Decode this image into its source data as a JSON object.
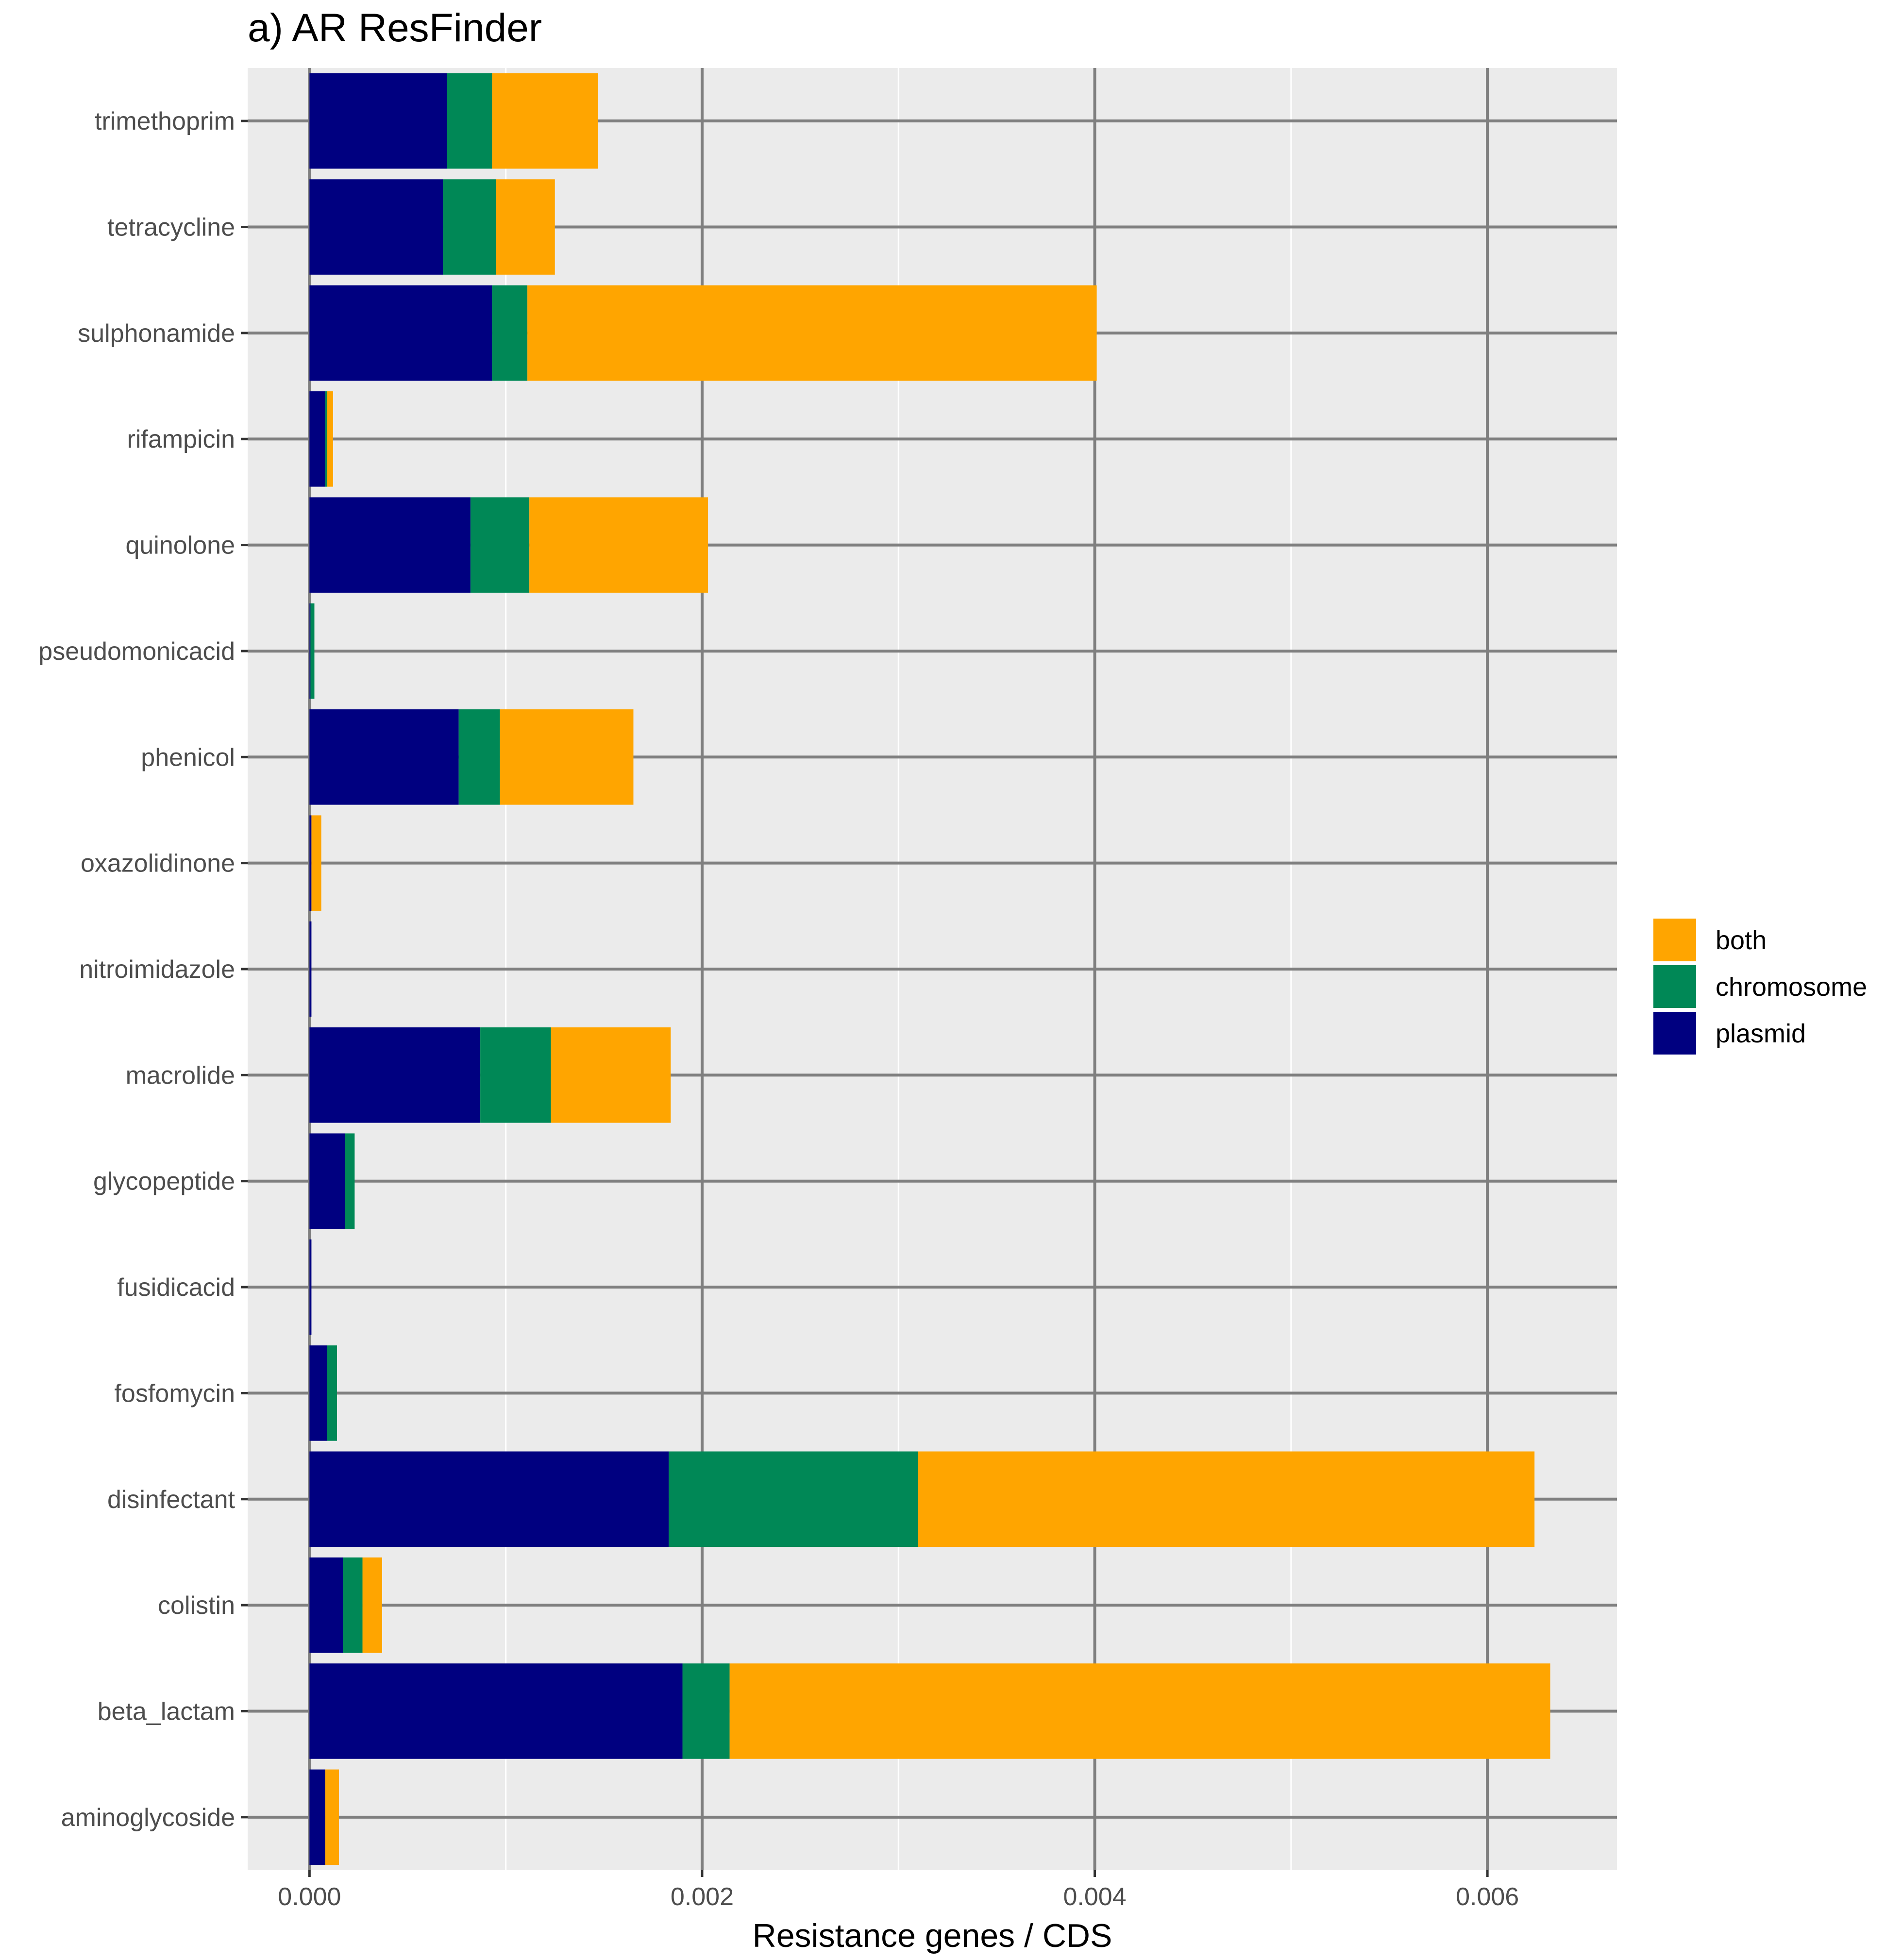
{
  "chart_data": {
    "type": "bar",
    "orientation": "horizontal",
    "stacked": true,
    "title": "a) AR ResFinder",
    "xlabel": "Resistance genes / CDS",
    "ylabel": "",
    "xlim": [
      -0.000315,
      0.00666
    ],
    "xticks": [
      0.0,
      0.002,
      0.004,
      0.006
    ],
    "xtick_labels": [
      "0.000",
      "0.002",
      "0.004",
      "0.006"
    ],
    "grid": true,
    "legend_position": "right",
    "categories": [
      "trimethoprim",
      "tetracycline",
      "sulphonamide",
      "rifampicin",
      "quinolone",
      "pseudomonicacid",
      "phenicol",
      "oxazolidinone",
      "nitroimidazole",
      "macrolide",
      "glycopeptide",
      "fusidicacid",
      "fosfomycin",
      "disinfectant",
      "colistin",
      "beta_lactam",
      "aminoglycoside"
    ],
    "series": [
      {
        "name": "plasmid",
        "color": "#000080",
        "values": [
          0.0007,
          0.00068,
          0.00093,
          8e-05,
          0.00082,
          5e-06,
          0.00076,
          1e-05,
          1e-05,
          0.00087,
          0.00018,
          1e-05,
          9e-05,
          0.00183,
          0.00017,
          0.0019,
          8e-05
        ]
      },
      {
        "name": "chromosome",
        "color": "#008856",
        "values": [
          0.00023,
          0.00027,
          0.00018,
          1e-05,
          0.0003,
          2e-05,
          0.00021,
          0.0,
          0.0,
          0.00036,
          5e-05,
          0.0,
          5e-05,
          0.00127,
          0.0001,
          0.00024,
          0.0
        ]
      },
      {
        "name": "both",
        "color": "#FFA500",
        "values": [
          0.00054,
          0.0003,
          0.0029,
          3e-05,
          0.00091,
          0.0,
          0.00068,
          5e-05,
          0.0,
          0.00061,
          0.0,
          0.0,
          0.0,
          0.00314,
          0.0001,
          0.00418,
          7e-05
        ]
      }
    ],
    "legend": [
      {
        "name": "both",
        "color": "#FFA500"
      },
      {
        "name": "chromosome",
        "color": "#008856"
      },
      {
        "name": "plasmid",
        "color": "#000080"
      }
    ]
  }
}
